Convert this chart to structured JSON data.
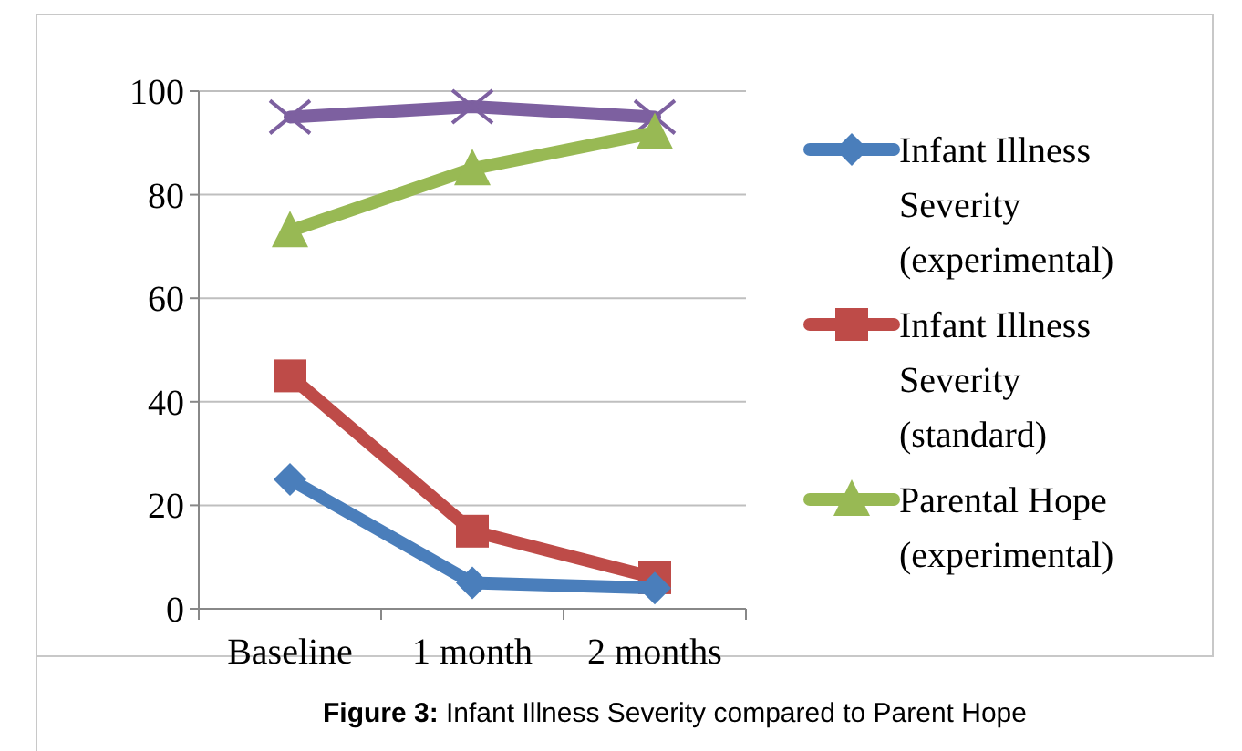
{
  "chart_data": {
    "type": "line",
    "categories": [
      "Baseline",
      "1 month",
      "2 months"
    ],
    "series": [
      {
        "name": "Infant Illness Severity (experimental)",
        "color": "#4a7ebb",
        "marker": "diamond",
        "values": [
          25,
          5,
          4
        ]
      },
      {
        "name": "Infant Illness Severity (standard)",
        "color": "#be4b48",
        "marker": "square",
        "values": [
          45,
          15,
          6
        ]
      },
      {
        "name": "Parental Hope (experimental)",
        "color": "#98b954",
        "marker": "triangle",
        "values": [
          73,
          85,
          92
        ]
      },
      {
        "color": "#7d60a0",
        "marker": "cross",
        "values": [
          95,
          97,
          95
        ]
      }
    ],
    "ylim": [
      0,
      100
    ],
    "yticks": [
      0,
      20,
      40,
      60,
      80,
      100
    ],
    "grid": "y",
    "legend": "right",
    "annotations": [
      "Figure 3: Infant Illness Severity compared to Parent Hope"
    ]
  }
}
